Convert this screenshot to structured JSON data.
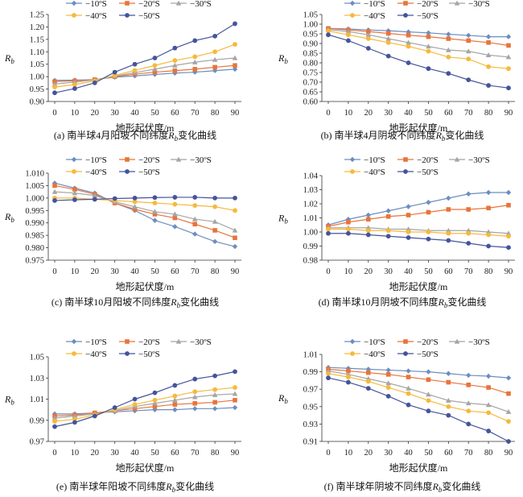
{
  "colors": {
    "s10": "#6c8ebf",
    "s20": "#e8743b",
    "s30": "#a5a5a5",
    "s40": "#f6b93b",
    "s50": "#44549c"
  },
  "chart_data": [
    {
      "type": "line",
      "caption_prefix": "(a) 南半球4月阳坡不同纬度",
      "caption_suffix": "变化曲线",
      "xlabel": "地形起伏度/m",
      "ylabel": "R",
      "ylabel_sub": "b",
      "x": [
        0,
        10,
        20,
        30,
        40,
        50,
        60,
        70,
        80,
        90
      ],
      "ylim": [
        0.9,
        1.25
      ],
      "yticks": [
        "0.90",
        "0.95",
        "1.00",
        "1.05",
        "1.10",
        "1.15",
        "1.20",
        "1.25"
      ],
      "series": [
        {
          "name": "−10ºS",
          "color_key": "s10",
          "marker": "diamond",
          "values": [
            0.985,
            0.986,
            0.988,
            0.998,
            1.003,
            1.009,
            1.014,
            1.018,
            1.024,
            1.03
          ]
        },
        {
          "name": "−20ºS",
          "color_key": "s20",
          "marker": "square",
          "values": [
            0.98,
            0.983,
            0.988,
            1.0,
            1.01,
            1.018,
            1.024,
            1.03,
            1.038,
            1.045
          ]
        },
        {
          "name": "−30ºS",
          "color_key": "s30",
          "marker": "triangle",
          "values": [
            0.97,
            0.978,
            0.987,
            1.002,
            1.016,
            1.03,
            1.045,
            1.058,
            1.068,
            1.075
          ]
        },
        {
          "name": "−40ºS",
          "color_key": "s40",
          "marker": "circle",
          "values": [
            0.958,
            0.968,
            0.983,
            1.005,
            1.025,
            1.045,
            1.065,
            1.08,
            1.1,
            1.13
          ]
        },
        {
          "name": "−50ºS",
          "color_key": "s50",
          "marker": "circle",
          "values": [
            0.935,
            0.952,
            0.975,
            1.018,
            1.05,
            1.075,
            1.115,
            1.145,
            1.163,
            1.213
          ]
        }
      ]
    },
    {
      "type": "line",
      "caption_prefix": "(b) 南半球4月阴坡不同纬度",
      "caption_suffix": "变化曲线",
      "xlabel": "地形起伏度/m",
      "ylabel": "R",
      "ylabel_sub": "b",
      "x": [
        0,
        10,
        20,
        30,
        40,
        50,
        60,
        70,
        80,
        90
      ],
      "ylim": [
        0.6,
        1.05
      ],
      "yticks": [
        "0.60",
        "0.65",
        "0.70",
        "0.75",
        "0.80",
        "0.85",
        "0.90",
        "0.95",
        "1.00",
        "1.05"
      ],
      "series": [
        {
          "name": "−10ºS",
          "color_key": "s10",
          "marker": "diamond",
          "values": [
            0.978,
            0.975,
            0.97,
            0.966,
            0.96,
            0.955,
            0.948,
            0.942,
            0.935,
            0.935
          ]
        },
        {
          "name": "−20ºS",
          "color_key": "s20",
          "marker": "square",
          "values": [
            0.978,
            0.97,
            0.962,
            0.952,
            0.943,
            0.935,
            0.925,
            0.915,
            0.905,
            0.89
          ]
        },
        {
          "name": "−30ºS",
          "color_key": "s30",
          "marker": "triangle",
          "values": [
            0.972,
            0.962,
            0.945,
            0.925,
            0.905,
            0.885,
            0.866,
            0.86,
            0.84,
            0.83
          ]
        },
        {
          "name": "−40ºS",
          "color_key": "s40",
          "marker": "circle",
          "values": [
            0.965,
            0.945,
            0.925,
            0.905,
            0.885,
            0.86,
            0.83,
            0.82,
            0.78,
            0.77
          ]
        },
        {
          "name": "−50ºS",
          "color_key": "s50",
          "marker": "circle",
          "values": [
            0.945,
            0.915,
            0.875,
            0.835,
            0.8,
            0.77,
            0.745,
            0.712,
            0.683,
            0.67
          ]
        }
      ]
    },
    {
      "type": "line",
      "caption_prefix": "(c) 南半球10月阳坡不同纬度",
      "caption_suffix": "变化曲线",
      "xlabel": "地形起伏度/m",
      "ylabel": "R",
      "ylabel_sub": "b",
      "x": [
        0,
        10,
        20,
        30,
        40,
        50,
        60,
        70,
        80,
        90
      ],
      "ylim": [
        0.975,
        1.01
      ],
      "yticks": [
        "0.975",
        "0.980",
        "0.985",
        "0.990",
        "0.995",
        "1.000",
        "1.005",
        "1.010"
      ],
      "series": [
        {
          "name": "−10ºS",
          "color_key": "s10",
          "marker": "diamond",
          "values": [
            1.006,
            1.004,
            1.002,
            0.998,
            0.995,
            0.991,
            0.9885,
            0.9855,
            0.9825,
            0.9805
          ]
        },
        {
          "name": "−20ºS",
          "color_key": "s20",
          "marker": "square",
          "values": [
            1.005,
            1.0035,
            1.0015,
            0.998,
            0.9955,
            0.9935,
            0.992,
            0.9895,
            0.987,
            0.984
          ]
        },
        {
          "name": "−30ºS",
          "color_key": "s30",
          "marker": "triangle",
          "values": [
            1.0025,
            1.002,
            1.001,
            0.9985,
            0.9965,
            0.9945,
            0.9935,
            0.9915,
            0.9905,
            0.987
          ]
        },
        {
          "name": "−40ºS",
          "color_key": "s40",
          "marker": "circle",
          "values": [
            1.0,
            1.0,
            0.9995,
            0.999,
            0.9985,
            0.998,
            0.9975,
            0.997,
            0.9965,
            0.995
          ]
        },
        {
          "name": "−50ºS",
          "color_key": "s50",
          "marker": "circle",
          "values": [
            0.999,
            0.9993,
            0.9995,
            0.9998,
            1.0,
            1.0002,
            1.0003,
            1.0003,
            1.0,
            1.0
          ]
        }
      ]
    },
    {
      "type": "line",
      "caption_prefix": "(d) 南半球10月阴坡不同纬度",
      "caption_suffix": "变化曲线",
      "xlabel": "地形起伏度/m",
      "ylabel": "R",
      "ylabel_sub": "b",
      "x": [
        0,
        10,
        20,
        30,
        40,
        50,
        60,
        70,
        80,
        90
      ],
      "ylim": [
        0.98,
        1.04
      ],
      "yticks": [
        "0.98",
        "0.99",
        "1.00",
        "1.01",
        "1.02",
        "1.03",
        "1.04"
      ],
      "series": [
        {
          "name": "−10ºS",
          "color_key": "s10",
          "marker": "diamond",
          "values": [
            1.005,
            1.009,
            1.012,
            1.015,
            1.018,
            1.021,
            1.024,
            1.027,
            1.028,
            1.028
          ]
        },
        {
          "name": "−20ºS",
          "color_key": "s20",
          "marker": "square",
          "values": [
            1.004,
            1.007,
            1.009,
            1.011,
            1.012,
            1.014,
            1.016,
            1.016,
            1.017,
            1.019
          ]
        },
        {
          "name": "−30ºS",
          "color_key": "s30",
          "marker": "triangle",
          "values": [
            1.003,
            1.003,
            1.003,
            1.002,
            1.002,
            1.001,
            1.001,
            1.001,
            1.0,
            0.999
          ]
        },
        {
          "name": "−40ºS",
          "color_key": "s40",
          "marker": "circle",
          "values": [
            1.002,
            1.002,
            1.001,
            1.001,
            1.0,
            1.0,
            0.999,
            0.999,
            0.998,
            0.997
          ]
        },
        {
          "name": "−50ºS",
          "color_key": "s50",
          "marker": "circle",
          "values": [
            0.999,
            0.999,
            0.998,
            0.997,
            0.996,
            0.995,
            0.994,
            0.992,
            0.99,
            0.989
          ]
        }
      ]
    },
    {
      "type": "line",
      "caption_prefix": "(e) 南半球年阳坡不同纬度",
      "caption_suffix": "变化曲线",
      "xlabel": "地形起伏度/m",
      "ylabel": "R",
      "ylabel_sub": "b",
      "x": [
        0,
        10,
        20,
        30,
        40,
        50,
        60,
        70,
        80,
        90
      ],
      "ylim": [
        0.97,
        1.05
      ],
      "yticks": [
        "0.97",
        "0.99",
        "1.01",
        "1.03",
        "1.05"
      ],
      "series": [
        {
          "name": "−10ºS",
          "color_key": "s10",
          "marker": "diamond",
          "values": [
            0.996,
            0.996,
            0.997,
            0.998,
            0.999,
            1.0,
            1.0,
            1.001,
            1.001,
            1.002
          ]
        },
        {
          "name": "−20ºS",
          "color_key": "s20",
          "marker": "square",
          "values": [
            0.994,
            0.995,
            0.997,
            0.999,
            1.001,
            1.003,
            1.005,
            1.006,
            1.007,
            1.009
          ]
        },
        {
          "name": "−30ºS",
          "color_key": "s30",
          "marker": "triangle",
          "values": [
            0.992,
            0.994,
            0.996,
            0.999,
            1.003,
            1.006,
            1.009,
            1.012,
            1.014,
            1.015
          ]
        },
        {
          "name": "−40ºS",
          "color_key": "s40",
          "marker": "circle",
          "values": [
            0.989,
            0.991,
            0.995,
            1.0,
            1.005,
            1.009,
            1.013,
            1.017,
            1.019,
            1.021
          ]
        },
        {
          "name": "−50ºS",
          "color_key": "s50",
          "marker": "circle",
          "values": [
            0.984,
            0.988,
            0.994,
            1.002,
            1.01,
            1.016,
            1.023,
            1.029,
            1.032,
            1.036
          ]
        }
      ]
    },
    {
      "type": "line",
      "caption_prefix": "(f) 南半球年阴坡不同纬度",
      "caption_suffix": "变化曲线",
      "xlabel": "地形起伏度/m",
      "ylabel": "R",
      "ylabel_sub": "b",
      "x": [
        0,
        10,
        20,
        30,
        40,
        50,
        60,
        70,
        80,
        90
      ],
      "ylim": [
        0.91,
        1.01
      ],
      "yticks": [
        "0.91",
        "0.93",
        "0.95",
        "0.97",
        "0.99",
        "1.01"
      ],
      "series": [
        {
          "name": "−10ºS",
          "color_key": "s10",
          "marker": "diamond",
          "values": [
            0.995,
            0.994,
            0.993,
            0.992,
            0.991,
            0.99,
            0.988,
            0.986,
            0.985,
            0.983
          ]
        },
        {
          "name": "−20ºS",
          "color_key": "s20",
          "marker": "square",
          "values": [
            0.993,
            0.991,
            0.989,
            0.987,
            0.984,
            0.981,
            0.978,
            0.975,
            0.972,
            0.965
          ]
        },
        {
          "name": "−30ºS",
          "color_key": "s30",
          "marker": "triangle",
          "values": [
            0.991,
            0.987,
            0.982,
            0.977,
            0.971,
            0.964,
            0.957,
            0.954,
            0.952,
            0.944
          ]
        },
        {
          "name": "−40ºS",
          "color_key": "s40",
          "marker": "circle",
          "values": [
            0.988,
            0.984,
            0.979,
            0.972,
            0.965,
            0.957,
            0.95,
            0.945,
            0.943,
            0.933
          ]
        },
        {
          "name": "−50ºS",
          "color_key": "s50",
          "marker": "circle",
          "values": [
            0.983,
            0.978,
            0.971,
            0.962,
            0.952,
            0.945,
            0.94,
            0.93,
            0.922,
            0.91
          ]
        }
      ]
    }
  ]
}
